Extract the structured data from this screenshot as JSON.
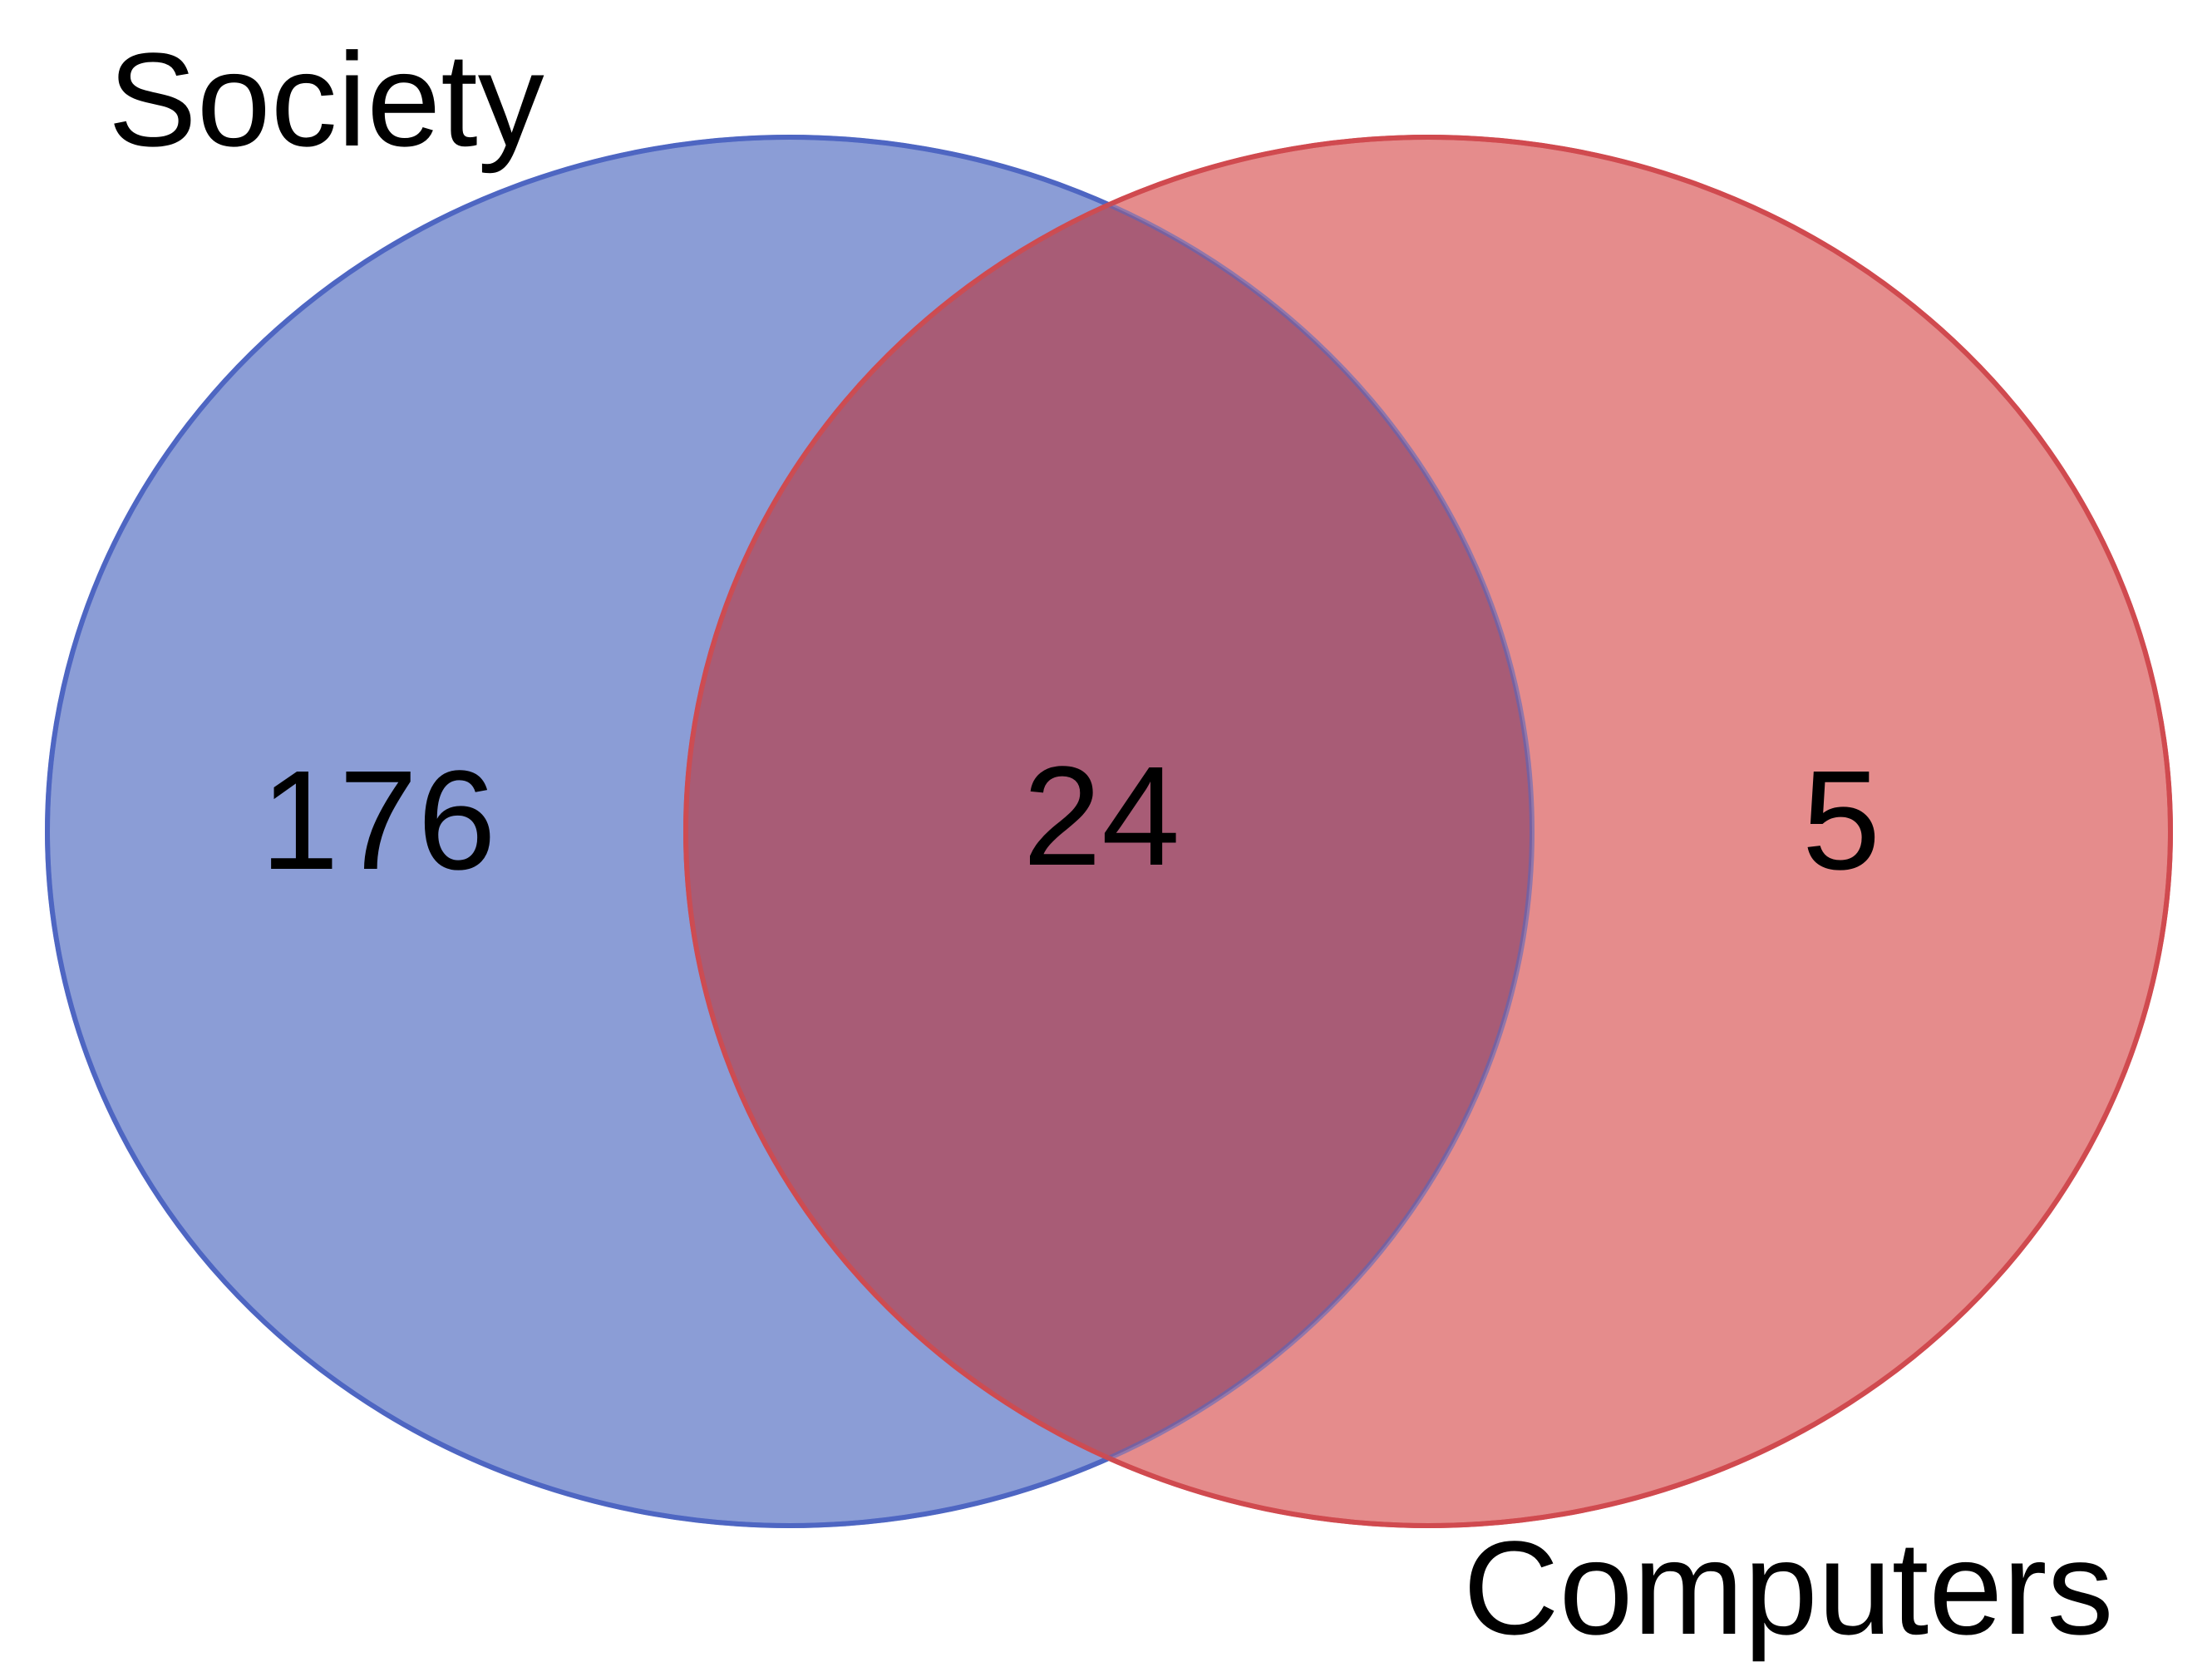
{
  "diagram": {
    "type": "venn",
    "sets": [
      {
        "key": "society",
        "label": "Society",
        "only_count": "176",
        "fill": "#8b9dd6",
        "stroke": "#4f66c2"
      },
      {
        "key": "computers",
        "label": "Computers",
        "only_count": "5",
        "fill": "#e58c8c",
        "stroke": "#d04a4f"
      }
    ],
    "intersection": {
      "count": "24",
      "fill": "#a85c76"
    }
  }
}
